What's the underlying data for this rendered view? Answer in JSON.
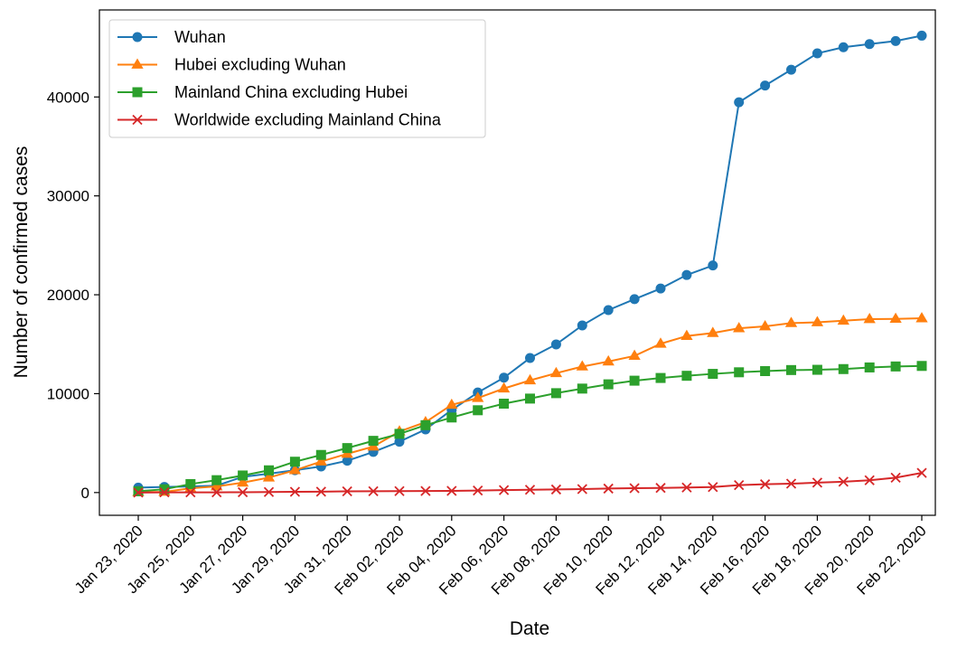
{
  "chart_data": {
    "type": "line",
    "title": "",
    "xlabel": "Date",
    "ylabel": "Number of confirmed cases",
    "ylim": [
      -2300,
      48800
    ],
    "yticks": [
      0,
      10000,
      20000,
      30000,
      40000
    ],
    "x": [
      "Jan 23, 2020",
      "Jan 24, 2020",
      "Jan 25, 2020",
      "Jan 26, 2020",
      "Jan 27, 2020",
      "Jan 28, 2020",
      "Jan 29, 2020",
      "Jan 30, 2020",
      "Jan 31, 2020",
      "Feb 01, 2020",
      "Feb 02, 2020",
      "Feb 03, 2020",
      "Feb 04, 2020",
      "Feb 05, 2020",
      "Feb 06, 2020",
      "Feb 07, 2020",
      "Feb 08, 2020",
      "Feb 09, 2020",
      "Feb 10, 2020",
      "Feb 11, 2020",
      "Feb 12, 2020",
      "Feb 13, 2020",
      "Feb 14, 2020",
      "Feb 15, 2020",
      "Feb 16, 2020",
      "Feb 17, 2020",
      "Feb 18, 2020",
      "Feb 19, 2020",
      "Feb 20, 2020",
      "Feb 21, 2020",
      "Feb 22, 2020"
    ],
    "xtick_labels": [
      "Jan 23, 2020",
      "Jan 25, 2020",
      "Jan 27, 2020",
      "Jan 29, 2020",
      "Jan 31, 2020",
      "Feb 02, 2020",
      "Feb 04, 2020",
      "Feb 06, 2020",
      "Feb 08, 2020",
      "Feb 10, 2020",
      "Feb 12, 2020",
      "Feb 14, 2020",
      "Feb 16, 2020",
      "Feb 18, 2020",
      "Feb 20, 2020",
      "Feb 22, 2020"
    ],
    "grid": false,
    "legend_position": "top-left",
    "series": [
      {
        "name": "Wuhan",
        "color": "#1f77b4",
        "marker": "circle",
        "values": [
          495,
          572,
          618,
          698,
          1590,
          1905,
          2261,
          2639,
          3215,
          4109,
          5142,
          6384,
          8351,
          10117,
          11618,
          13603,
          14982,
          16902,
          18454,
          19558,
          20630,
          22000,
          22960,
          39462,
          41152,
          42752,
          44412,
          45027,
          45346,
          45660,
          46201
        ]
      },
      {
        "name": "Hubei excluding Wuhan",
        "color": "#ff7f0e",
        "marker": "triangle",
        "values": [
          49,
          70,
          434,
          625,
          1001,
          1511,
          2251,
          3137,
          3918,
          4649,
          6174,
          7118,
          8867,
          9556,
          10521,
          11343,
          12068,
          12741,
          13250,
          13818,
          15047,
          15829,
          16128,
          16607,
          16804,
          17137,
          17216,
          17378,
          17531,
          17563,
          17618
        ]
      },
      {
        "name": "Mainland China excluding Hubei",
        "color": "#2ca02c",
        "marker": "square",
        "values": [
          131,
          334,
          860,
          1252,
          1726,
          2249,
          3118,
          3803,
          4499,
          5229,
          5935,
          6812,
          7591,
          8322,
          8989,
          9502,
          10050,
          10512,
          10944,
          11312,
          11586,
          11807,
          12001,
          12161,
          12281,
          12387,
          12413,
          12485,
          12651,
          12750,
          12803
        ]
      },
      {
        "name": "Worldwide excluding Mainland China",
        "color": "#d62728",
        "marker": "x",
        "values": [
          0,
          15,
          15,
          22,
          35,
          55,
          75,
          88,
          120,
          132,
          142,
          159,
          172,
          198,
          247,
          287,
          312,
          353,
          403,
          442,
          470,
          513,
          559,
          749,
          837,
          899,
          1000,
          1091,
          1240,
          1508,
          1989
        ]
      }
    ]
  }
}
